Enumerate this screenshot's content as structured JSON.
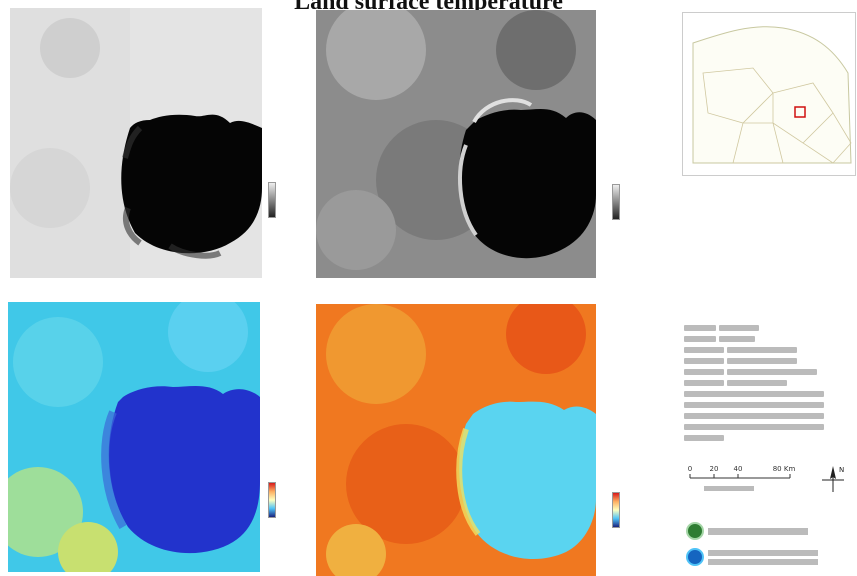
{
  "title": "Land surface temperature",
  "colors": {
    "water_dark": "#050505",
    "lst_water": "#2233cc",
    "lst_land": "#40c8e8",
    "lst2_land": "#f07820",
    "lst2_water": "#5ad4f0"
  },
  "scale_bar": {
    "ticks": [
      "0",
      "20",
      "40",
      "80 Km"
    ]
  },
  "north_arrow": {
    "label": "N"
  }
}
